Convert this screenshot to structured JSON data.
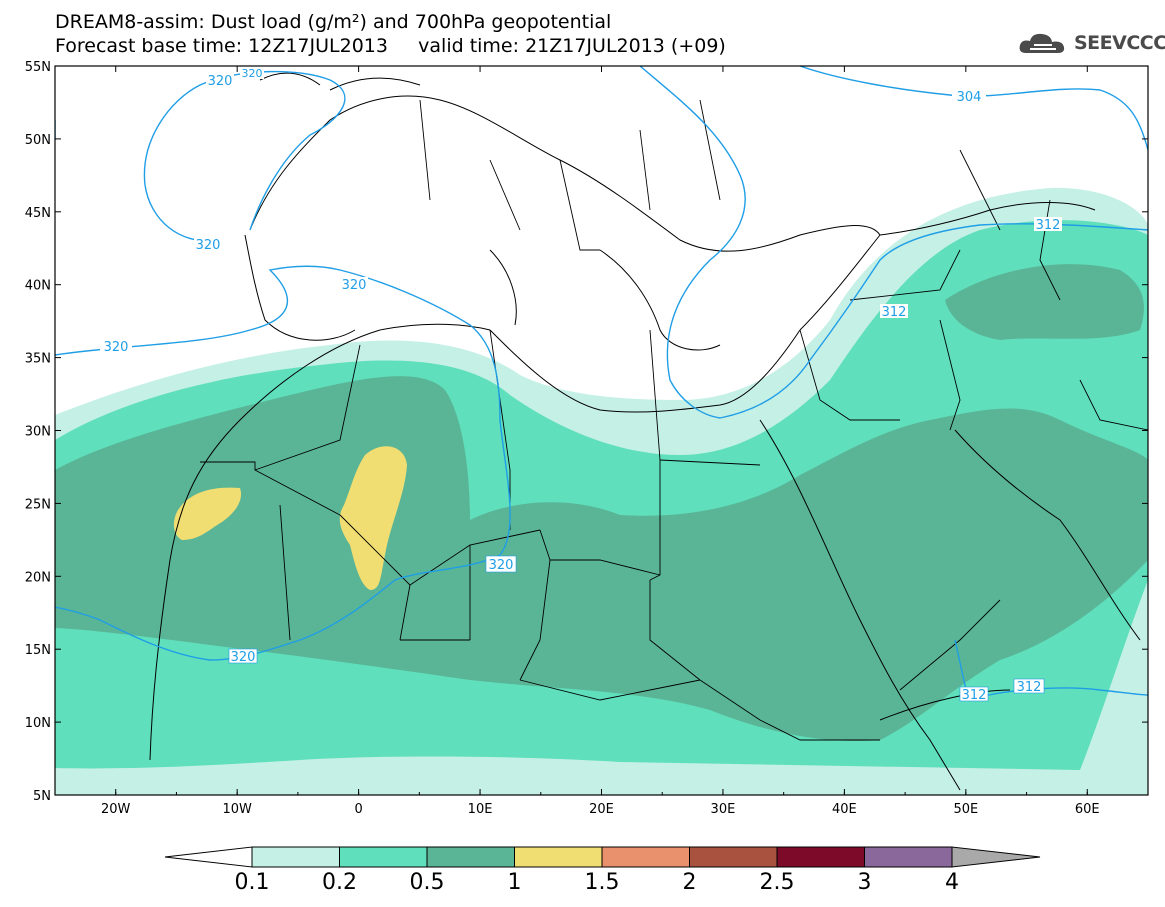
{
  "title": {
    "line1": "DREAM8-assim: Dust load (g/m²) and 700hPa geopotential",
    "line2": "Forecast base time: 12Z17JUL2013     valid time: 21Z17JUL2013 (+09)"
  },
  "logo": {
    "icon": "cloud-icon",
    "text": "SEEVCCC"
  },
  "map": {
    "extent": {
      "lon": [
        -25,
        65
      ],
      "lat": [
        5,
        55
      ]
    },
    "lat_labels": [
      "55N",
      "50N",
      "45N",
      "40N",
      "35N",
      "30N",
      "25N",
      "20N",
      "15N",
      "10N",
      "5N"
    ],
    "lon_labels": [
      "20W",
      "10W",
      "0",
      "10E",
      "20E",
      "30E",
      "40E",
      "50E",
      "60E"
    ],
    "contour_labels": [
      "320",
      "320",
      "320",
      "320",
      "320",
      "320",
      "304",
      "312",
      "312",
      "312",
      "312"
    ]
  },
  "colorbar": {
    "thresholds": [
      "0.1",
      "0.2",
      "0.5",
      "1",
      "1.5",
      "2",
      "2.5",
      "3",
      "4"
    ],
    "colors": [
      "#c5f0e6",
      "#5fdfbc",
      "#5ab596",
      "#f0de72",
      "#e8916c",
      "#a8523f",
      "#7c0a28",
      "#8b689c",
      "#a9a9a9"
    ],
    "under_color": "#ffffff"
  }
}
